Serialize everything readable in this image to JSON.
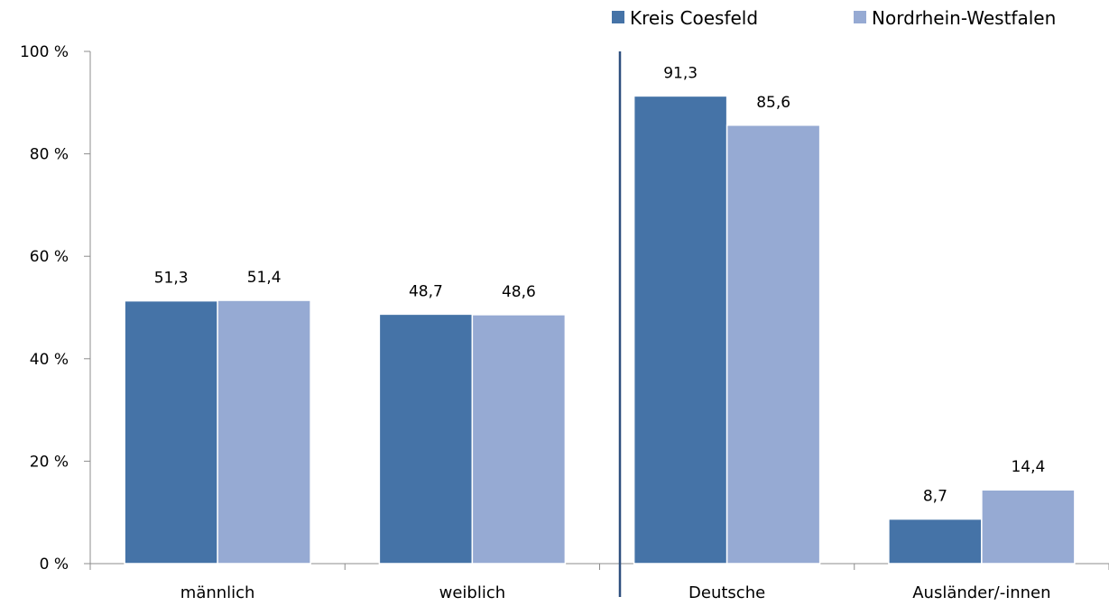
{
  "chart_data": {
    "type": "bar",
    "categories": [
      "männlich",
      "weiblich",
      "Deutsche",
      "Ausländer/-innen"
    ],
    "series": [
      {
        "name": "Kreis Coesfeld",
        "color": "#4573A7",
        "values": [
          51.3,
          48.7,
          91.3,
          8.7
        ],
        "labels": [
          "51,3",
          "48,7",
          "91,3",
          "8,7"
        ]
      },
      {
        "name": "Nordrhein-Westfalen",
        "color": "#96AAD3",
        "values": [
          51.4,
          48.6,
          85.6,
          14.4
        ],
        "labels": [
          "51,4",
          "48,6",
          "85,6",
          "14,4"
        ]
      }
    ],
    "yticks": [
      "0 %",
      "20 %",
      "40 %",
      "60 %",
      "80 %",
      "100 %"
    ],
    "ylim": [
      0,
      100
    ],
    "grid": false,
    "legend_position": "top-right",
    "separator_color": "#2E4F7E"
  }
}
